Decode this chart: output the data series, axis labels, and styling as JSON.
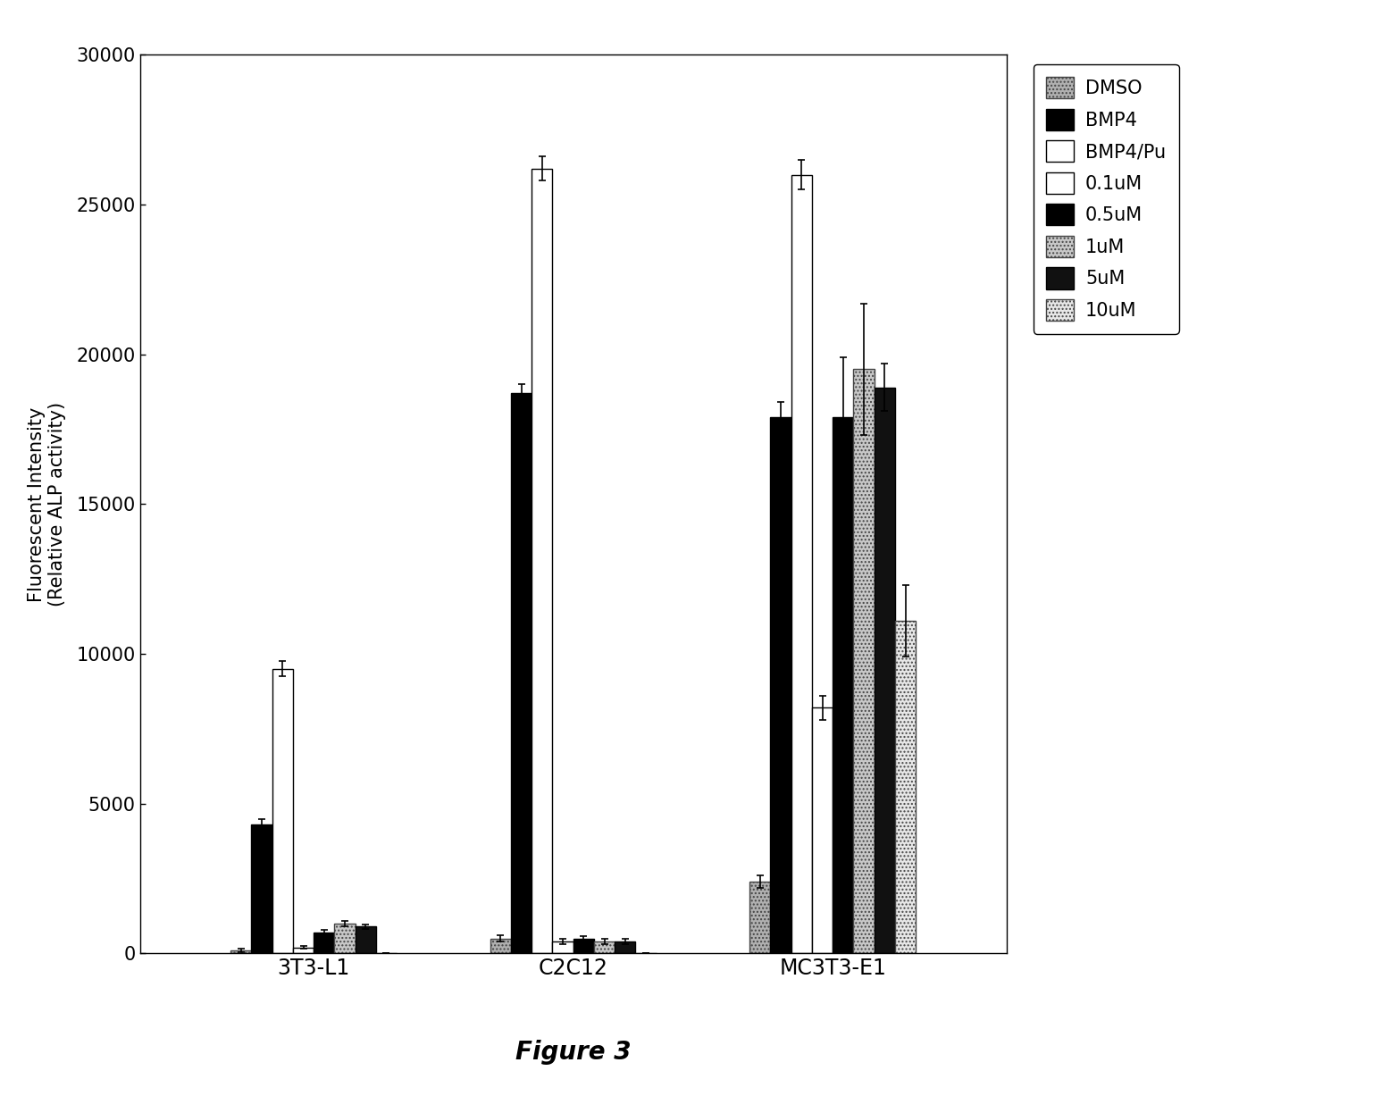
{
  "groups": [
    "3T3-L1",
    "C2C12",
    "MC3T3-E1"
  ],
  "series_labels": [
    "DMSO",
    "BMP4",
    "BMP4/Pu",
    "0.1uM",
    "0.5uM",
    "1uM",
    "5uM",
    "10uM"
  ],
  "values": {
    "3T3-L1": [
      100,
      4300,
      9500,
      200,
      700,
      1000,
      900,
      0
    ],
    "C2C12": [
      500,
      18700,
      26200,
      400,
      500,
      400,
      400,
      0
    ],
    "MC3T3-E1": [
      2400,
      17900,
      26000,
      8200,
      17900,
      19500,
      18900,
      11100
    ]
  },
  "errors": {
    "3T3-L1": [
      50,
      200,
      250,
      50,
      100,
      100,
      80,
      0
    ],
    "C2C12": [
      100,
      300,
      400,
      80,
      80,
      80,
      80,
      0
    ],
    "MC3T3-E1": [
      200,
      500,
      500,
      400,
      2000,
      2200,
      800,
      1200
    ]
  },
  "colors": [
    "#b0b0b0",
    "#000000",
    "#ffffff",
    "#ffffff",
    "#000000",
    "#c8c8c8",
    "#111111",
    "#e8e8e8"
  ],
  "hatches": [
    "....",
    "",
    "",
    "",
    "",
    "....",
    "",
    "...."
  ],
  "edgecolors": [
    "#444444",
    "#000000",
    "#000000",
    "#000000",
    "#000000",
    "#444444",
    "#000000",
    "#444444"
  ],
  "ylabel": "Fluorescent Intensity\n(Relative ALP activity)",
  "ylim": [
    0,
    30000
  ],
  "yticks": [
    0,
    5000,
    10000,
    15000,
    20000,
    25000,
    30000
  ],
  "figure_label": "Figure 3",
  "bar_width": 0.08,
  "group_centers": [
    1.0,
    2.0,
    3.0
  ],
  "background_color": "#ffffff"
}
